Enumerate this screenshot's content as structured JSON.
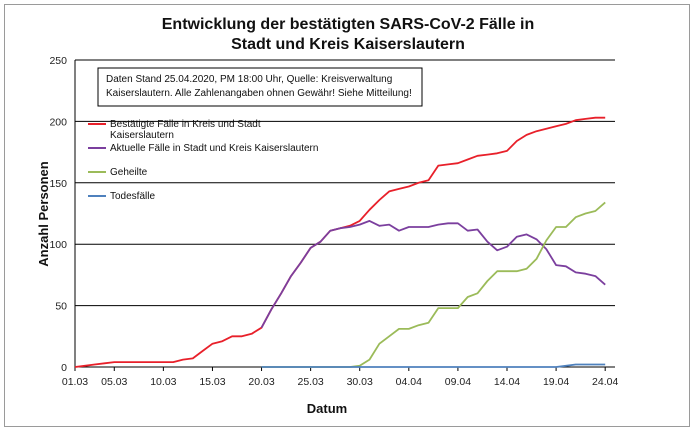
{
  "chart_data": {
    "type": "line",
    "title_lines": [
      "Entwicklung der bestätigten SARS-CoV-2 Fälle in",
      "Stadt und Kreis Kaiserslautern"
    ],
    "xlabel": "Datum",
    "ylabel": "Anzahl Personen",
    "ylim": [
      0,
      250
    ],
    "yticks": [
      0,
      50,
      100,
      150,
      200,
      250
    ],
    "x_tick_labels": [
      "01.03",
      "05.03",
      "10.03",
      "15.03",
      "20.03",
      "25.03",
      "30.03",
      "04.04",
      "09.04",
      "14.04",
      "19.04",
      "24.04"
    ],
    "x_tick_days": [
      0,
      4,
      9,
      14,
      19,
      24,
      29,
      34,
      39,
      44,
      49,
      54
    ],
    "x_range_days": [
      0,
      55
    ],
    "grid": "horizontal",
    "legend_position": "top-left",
    "annotation_lines": [
      "Daten Stand 25.04.2020, PM 18:00 Uhr, Quelle: Kreisverwaltung",
      "Kaiserslautern. Alle Zahlenangaben ohnen Gewähr! Siehe Mitteilung!"
    ],
    "series": [
      {
        "name_lines": [
          "Bestätigte Fälle in Kreis und Stadt",
          "Kaiserslautern"
        ],
        "color": "#e8202a",
        "x_days": [
          0,
          1,
          2,
          3,
          4,
          5,
          6,
          7,
          8,
          9,
          10,
          11,
          12,
          13,
          14,
          15,
          16,
          17,
          18,
          19,
          20,
          21,
          22,
          23,
          24,
          25,
          26,
          27,
          28,
          29,
          30,
          31,
          32,
          33,
          34,
          35,
          36,
          37,
          38,
          39,
          40,
          41,
          42,
          43,
          44,
          45,
          46,
          47,
          48,
          49,
          50,
          51,
          52,
          53,
          54
        ],
        "values": [
          0,
          1,
          2,
          3,
          4,
          4,
          4,
          4,
          4,
          4,
          4,
          6,
          7,
          13,
          19,
          21,
          25,
          25,
          27,
          32,
          47,
          60,
          74,
          85,
          97,
          102,
          111,
          113,
          115,
          119,
          128,
          136,
          143,
          145,
          147,
          150,
          152,
          164,
          165,
          166,
          169,
          172,
          173,
          174,
          176,
          184,
          189,
          192,
          194,
          196,
          198,
          201,
          202,
          203,
          203
        ]
      },
      {
        "name_lines": [
          "Aktuelle Fälle in Stadt und Kreis Kaiserslautern"
        ],
        "color": "#7b3f9e",
        "x_days": [
          19,
          20,
          21,
          22,
          23,
          24,
          25,
          26,
          27,
          28,
          29,
          30,
          31,
          32,
          33,
          34,
          35,
          36,
          37,
          38,
          39,
          40,
          41,
          42,
          43,
          44,
          45,
          46,
          47,
          48,
          49,
          50,
          51,
          52,
          53,
          54
        ],
        "values": [
          32,
          47,
          60,
          74,
          85,
          97,
          102,
          111,
          113,
          114,
          116,
          119,
          115,
          116,
          111,
          114,
          114,
          114,
          116,
          117,
          117,
          111,
          112,
          102,
          95,
          98,
          106,
          108,
          104,
          96,
          83,
          82,
          77,
          76,
          74,
          67
        ]
      },
      {
        "name_lines": [
          "Geheilte"
        ],
        "color": "#9bbb59",
        "x_days": [
          19,
          20,
          21,
          22,
          23,
          24,
          25,
          26,
          27,
          28,
          29,
          30,
          31,
          32,
          33,
          34,
          35,
          36,
          37,
          38,
          39,
          40,
          41,
          42,
          43,
          44,
          45,
          46,
          47,
          48,
          49,
          50,
          51,
          52,
          53,
          54
        ],
        "values": [
          0,
          0,
          0,
          0,
          0,
          0,
          0,
          0,
          0,
          0,
          1,
          6,
          19,
          25,
          31,
          31,
          34,
          36,
          48,
          48,
          48,
          57,
          60,
          70,
          78,
          78,
          78,
          80,
          88,
          103,
          114,
          114,
          122,
          125,
          127,
          134
        ]
      },
      {
        "name_lines": [
          "Todesfälle"
        ],
        "color": "#4f81bd",
        "x_days": [
          19,
          20,
          21,
          22,
          23,
          24,
          25,
          26,
          27,
          28,
          29,
          30,
          31,
          32,
          33,
          34,
          35,
          36,
          37,
          38,
          39,
          40,
          41,
          42,
          43,
          44,
          45,
          46,
          47,
          48,
          49,
          50,
          51,
          52,
          53,
          54
        ],
        "values": [
          0,
          0,
          0,
          0,
          0,
          0,
          0,
          0,
          0,
          0,
          0,
          0,
          0,
          0,
          0,
          0,
          0,
          0,
          0,
          0,
          0,
          0,
          0,
          0,
          0,
          0,
          0,
          0,
          0,
          0,
          0,
          1,
          2,
          2,
          2,
          2
        ]
      }
    ]
  }
}
